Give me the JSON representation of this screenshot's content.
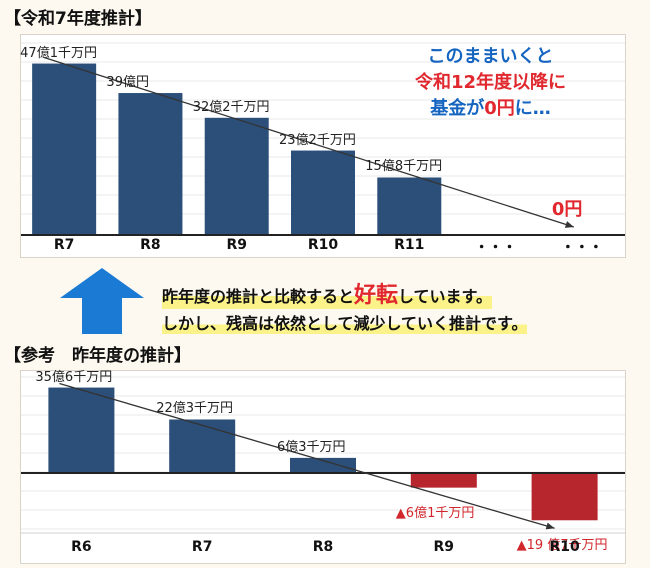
{
  "section1": {
    "title": "【令和7年度推計】"
  },
  "section2": {
    "title": "【参考　昨年度の推計】"
  },
  "note": {
    "line1": "このままいくと",
    "line2": "令和12年度以降に",
    "line3_pre": "基金が",
    "line3_zero": "0円",
    "line3_post": "に…"
  },
  "summary": {
    "line1_pre": "昨年度の推計と比較すると",
    "line1_hl": "好転",
    "line1_post": "しています。",
    "line2": "しかし、残高は依然として減少していく推計です。"
  },
  "colors": {
    "bar": "#2b4f78",
    "negative": "#b7262c",
    "arrow": "#1a7ad4",
    "red_text": "#e0282e",
    "blue_text": "#1565c0"
  },
  "chart_data": [
    {
      "type": "bar",
      "categories": [
        "R7",
        "R8",
        "R9",
        "R10",
        "R11",
        "・・・",
        "・・・"
      ],
      "values": [
        47.1,
        39,
        32.2,
        23.2,
        15.8,
        null,
        0
      ],
      "value_labels": [
        "47億1千万円",
        "39億円",
        "32億2千万円",
        "23億2千万円",
        "15億8千万円",
        "",
        "0円"
      ],
      "unit": "億円",
      "trend_line": "decreasing",
      "ylim": [
        0,
        50
      ],
      "grid": true
    },
    {
      "type": "bar",
      "categories": [
        "R6",
        "R7",
        "R8",
        "R9",
        "R10"
      ],
      "values": [
        35.6,
        22.3,
        6.3,
        -6.1,
        -19.7
      ],
      "value_labels": [
        "35億6千万円",
        "22億3千万円",
        "6億3千万円",
        "▲6億1千万円",
        "▲19 億7千万円"
      ],
      "unit": "億円",
      "trend_line": "decreasing",
      "ylim": [
        -22,
        40
      ],
      "grid": true
    }
  ]
}
